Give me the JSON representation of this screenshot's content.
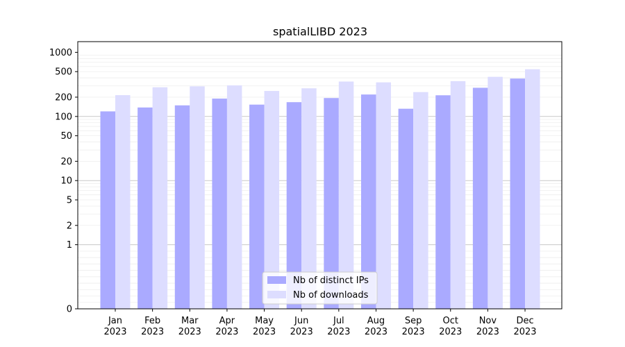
{
  "chart_data": {
    "type": "bar",
    "title": "spatialLIBD 2023",
    "xlabel": "",
    "ylabel": "",
    "y_scale": "symlog",
    "ylim": [
      0,
      1000
    ],
    "y_ticks": [
      0,
      1,
      2,
      5,
      10,
      20,
      50,
      100,
      200,
      500,
      1000
    ],
    "grid": true,
    "legend_position": "bottom-center",
    "categories": [
      {
        "month": "Jan",
        "year": "2023"
      },
      {
        "month": "Feb",
        "year": "2023"
      },
      {
        "month": "Mar",
        "year": "2023"
      },
      {
        "month": "Apr",
        "year": "2023"
      },
      {
        "month": "May",
        "year": "2023"
      },
      {
        "month": "Jun",
        "year": "2023"
      },
      {
        "month": "Jul",
        "year": "2023"
      },
      {
        "month": "Aug",
        "year": "2023"
      },
      {
        "month": "Sep",
        "year": "2023"
      },
      {
        "month": "Oct",
        "year": "2023"
      },
      {
        "month": "Nov",
        "year": "2023"
      },
      {
        "month": "Dec",
        "year": "2023"
      }
    ],
    "series": [
      {
        "name": "Nb of distinct IPs",
        "color": "#aaaaff",
        "values": [
          120,
          138,
          149,
          190,
          153,
          167,
          194,
          220,
          132,
          214,
          280,
          390
        ]
      },
      {
        "name": "Nb of downloads",
        "color": "#ddddff",
        "values": [
          215,
          285,
          295,
          305,
          250,
          275,
          350,
          340,
          240,
          355,
          415,
          545
        ]
      }
    ]
  }
}
